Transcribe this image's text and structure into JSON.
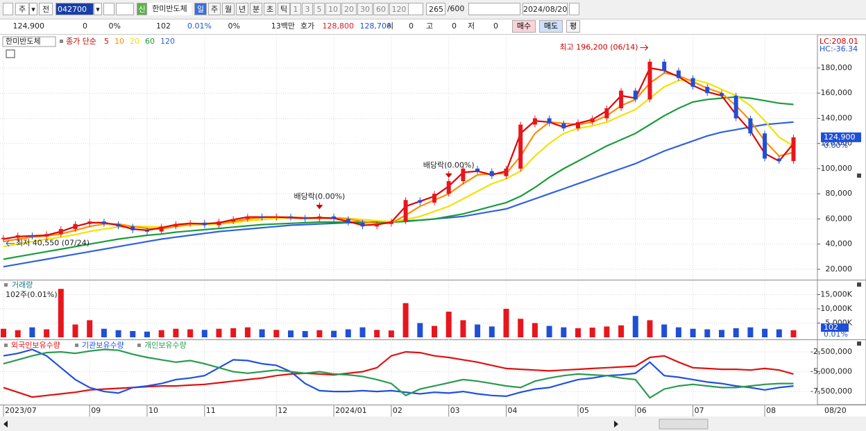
{
  "toolbar": {
    "period_type": "주",
    "compare": "전",
    "code": "042700",
    "badge": "신",
    "name": "한미반도체",
    "periods": [
      "일",
      "주",
      "월",
      "년",
      "분",
      "초",
      "틱"
    ],
    "intervals": [
      "1",
      "3",
      "5",
      "10",
      "20",
      "30",
      "60",
      "120"
    ],
    "count": "265",
    "count_max": "/600",
    "date": "2024/08/20"
  },
  "info_bar": {
    "cells": [
      "124,900",
      "0",
      "0%",
      "102",
      "0.01%",
      "0%",
      "13백만",
      "호가",
      "128,800",
      "128,700",
      "시",
      "0",
      "고",
      "0",
      "저",
      "0"
    ],
    "buttons": [
      "매수",
      "매도",
      "평"
    ]
  },
  "chart_data": [
    {
      "type": "candlestick",
      "title": "한미반도체",
      "legend_label": "종가 단순",
      "categories": [
        "2023/07",
        null,
        null,
        null,
        null,
        null,
        "09",
        null,
        null,
        null,
        "10",
        null,
        null,
        null,
        "11",
        null,
        null,
        null,
        null,
        "12",
        null,
        null,
        null,
        "2024/01",
        null,
        null,
        null,
        "02",
        null,
        null,
        null,
        "03",
        null,
        null,
        null,
        "04",
        null,
        null,
        null,
        null,
        "05",
        null,
        null,
        null,
        "06",
        null,
        null,
        null,
        "07",
        null,
        null,
        null,
        null,
        "08",
        null,
        null
      ],
      "last_date": "08/20",
      "up_color": "#e8161c",
      "down_color": "#1f4fd6",
      "close": [
        45000,
        47000,
        46000,
        48000,
        52000,
        56000,
        58000,
        56000,
        54000,
        51000,
        50000,
        54000,
        56000,
        57000,
        55000,
        58000,
        60000,
        62000,
        61000,
        62000,
        61000,
        60000,
        62000,
        60000,
        57000,
        54000,
        56000,
        58000,
        75000,
        73000,
        80000,
        90000,
        100000,
        98000,
        94000,
        100000,
        135000,
        140000,
        136000,
        132000,
        137000,
        140000,
        148000,
        162000,
        155000,
        185000,
        178000,
        172000,
        165000,
        160000,
        158000,
        140000,
        128000,
        108000,
        106000,
        124900
      ],
      "series": [
        {
          "name": "5",
          "color": "#e00000",
          "values": [
            44000,
            46000,
            46500,
            47000,
            50000,
            54000,
            57000,
            57000,
            55000,
            52000,
            51000,
            53000,
            55500,
            56500,
            56000,
            57000,
            59500,
            61500,
            61500,
            61500,
            61000,
            60500,
            61000,
            60500,
            58000,
            55000,
            55500,
            57500,
            70000,
            74000,
            78000,
            86000,
            97000,
            98000,
            95000,
            98000,
            128000,
            138000,
            137000,
            133000,
            136000,
            139000,
            146000,
            158000,
            156000,
            180000,
            178000,
            173000,
            166000,
            161000,
            158000,
            143000,
            130000,
            112000,
            106000,
            120000
          ]
        },
        {
          "name": "10",
          "color": "#ff8c00",
          "values": [
            42000,
            44000,
            45500,
            46500,
            48000,
            51000,
            54000,
            56000,
            56000,
            54000,
            52500,
            52000,
            54000,
            56000,
            56500,
            56500,
            58000,
            60000,
            61000,
            61500,
            61500,
            61000,
            60500,
            61000,
            60000,
            58000,
            56500,
            56500,
            63000,
            70000,
            75000,
            80000,
            88000,
            95000,
            96000,
            96000,
            110000,
            128000,
            137000,
            136000,
            135000,
            137000,
            142000,
            150000,
            155000,
            168000,
            176000,
            174000,
            169000,
            164000,
            160000,
            150000,
            138000,
            122000,
            110000,
            113000
          ]
        },
        {
          "name": "20",
          "color": "#f2e200",
          "values": [
            38000,
            40000,
            42000,
            44000,
            45500,
            47500,
            50000,
            52000,
            53500,
            54000,
            54000,
            53500,
            54000,
            55000,
            55500,
            56000,
            57000,
            58500,
            59500,
            60500,
            61000,
            61000,
            61000,
            61000,
            60500,
            59500,
            58500,
            58000,
            59500,
            62000,
            66000,
            70000,
            76000,
            82000,
            88000,
            92000,
            98000,
            110000,
            120000,
            128000,
            132000,
            134000,
            137000,
            142000,
            147000,
            156000,
            165000,
            170000,
            171000,
            168000,
            163000,
            158000,
            150000,
            138000,
            125000,
            118000
          ]
        },
        {
          "name": "60",
          "color": "#1a9c3a",
          "values": [
            28000,
            30000,
            32000,
            34000,
            36000,
            38000,
            40000,
            42000,
            44000,
            45500,
            47000,
            48000,
            49500,
            50500,
            51500,
            52500,
            53500,
            54500,
            55500,
            56000,
            56500,
            57000,
            57500,
            57500,
            57500,
            57500,
            57500,
            57500,
            58000,
            59000,
            60000,
            62000,
            64000,
            67000,
            70000,
            73000,
            78000,
            85000,
            93000,
            100000,
            106000,
            112000,
            118000,
            123000,
            128000,
            135000,
            142000,
            148000,
            153000,
            155000,
            156000,
            157000,
            156000,
            154000,
            152000,
            151000
          ]
        },
        {
          "name": "120",
          "color": "#3060e0",
          "values": [
            22000,
            24000,
            26000,
            28000,
            30000,
            32000,
            34000,
            36000,
            38000,
            40000,
            42000,
            44000,
            45500,
            47000,
            48500,
            50000,
            51000,
            52000,
            53000,
            54000,
            55000,
            55500,
            56000,
            56500,
            57000,
            57000,
            57500,
            58000,
            58500,
            59000,
            60000,
            61000,
            62000,
            64000,
            66000,
            68000,
            72000,
            76000,
            80000,
            84000,
            88000,
            92000,
            96000,
            100000,
            104000,
            109000,
            114000,
            118000,
            122000,
            126000,
            129000,
            131000,
            133000,
            135000,
            136000,
            137000
          ]
        }
      ],
      "ylim": [
        11700,
        203700
      ],
      "yticks": [
        {
          "value": 20000,
          "label": "20,000"
        },
        {
          "value": 40000,
          "label": "40,000"
        },
        {
          "value": 60000,
          "label": "60,000"
        },
        {
          "value": 80000,
          "label": "80,000"
        },
        {
          "value": 100000,
          "label": "100,000"
        },
        {
          "value": 120000,
          "label": "120,000"
        },
        {
          "value": 140000,
          "label": "140,000"
        },
        {
          "value": 160000,
          "label": "160,000"
        },
        {
          "value": 180000,
          "label": "180,000"
        }
      ],
      "grid": true,
      "annotations": [
        {
          "text": "최고 196,200 (06/14)",
          "value": 196200
        },
        {
          "text": "최저 40,550 (07/24)",
          "value": 40550
        },
        {
          "text": "배당락(0.00%)"
        },
        {
          "text": "배당락(0.00%)"
        }
      ],
      "scale_info": [
        "LC:208.01",
        "HC:-36.34"
      ],
      "last_price": {
        "value": 124900,
        "label": "124,900"
      },
      "change": "0.00%"
    },
    {
      "type": "bar",
      "title": "거래량",
      "subtitle": "102주(0.01%)",
      "values": [
        3000,
        2500,
        3500,
        2800,
        17000,
        4500,
        6000,
        3000,
        2500,
        2200,
        2000,
        2500,
        3000,
        2800,
        2600,
        3000,
        3200,
        3500,
        2800,
        2600,
        2400,
        2200,
        2500,
        2300,
        2800,
        3500,
        2600,
        2400,
        12000,
        5000,
        4000,
        9000,
        6000,
        4500,
        3800,
        10000,
        6500,
        5000,
        4000,
        3500,
        3200,
        3400,
        3800,
        4200,
        7500,
        6000,
        4500,
        3500,
        3000,
        2800,
        2600,
        3200,
        3500,
        3000,
        2800,
        2500
      ],
      "ylim": [
        0,
        19000
      ],
      "yticks": [
        {
          "value": 5000,
          "label": "5,000K"
        },
        {
          "value": 10000,
          "label": "10,000K"
        },
        {
          "value": 15000,
          "label": "15,000K"
        }
      ],
      "last_value": {
        "value": 0.102,
        "label": "102"
      },
      "last_change": "0.01%"
    },
    {
      "type": "line",
      "series": [
        {
          "name": "외국인보유수량",
          "color": "#e01010",
          "values": [
            -7000000,
            -7600000,
            -8200000,
            -8000000,
            -7800000,
            -7600000,
            -7300000,
            -7200000,
            -7100000,
            -7000000,
            -6900000,
            -6800000,
            -6800000,
            -6700000,
            -6600000,
            -6400000,
            -6200000,
            -6000000,
            -5800000,
            -5500000,
            -5300000,
            -5200000,
            -5300000,
            -5400000,
            -5200000,
            -5000000,
            -4500000,
            -3000000,
            -2500000,
            -2600000,
            -3000000,
            -3200000,
            -3500000,
            -3800000,
            -4200000,
            -4600000,
            -4700000,
            -4800000,
            -4900000,
            -4800000,
            -4700000,
            -4600000,
            -4500000,
            -4400000,
            -4300000,
            -3200000,
            -3000000,
            -3800000,
            -4500000,
            -4600000,
            -4700000,
            -4700000,
            -4800000,
            -4600000,
            -4800000,
            -5300000
          ]
        },
        {
          "name": "기관보유수량",
          "color": "#2050e0",
          "values": [
            -3000000,
            -2700000,
            -2200000,
            -3000000,
            -4500000,
            -6000000,
            -7000000,
            -7500000,
            -7700000,
            -7000000,
            -6800000,
            -6500000,
            -6000000,
            -5800000,
            -5500000,
            -4500000,
            -3500000,
            -3600000,
            -4000000,
            -4200000,
            -5000000,
            -6500000,
            -7400000,
            -7500000,
            -7500000,
            -7400000,
            -7500000,
            -7400000,
            -7600000,
            -7800000,
            -7600000,
            -7700000,
            -7500000,
            -7800000,
            -8000000,
            -8100000,
            -7600000,
            -7200000,
            -7000000,
            -6500000,
            -6000000,
            -5800000,
            -5500000,
            -5400000,
            -5200000,
            -3800000,
            -5500000,
            -5700000,
            -6000000,
            -6300000,
            -6500000,
            -6800000,
            -7000000,
            -7300000,
            -7000000,
            -6800000
          ]
        },
        {
          "name": "개인보유수량",
          "color": "#2a9a50",
          "values": [
            -4000000,
            -3500000,
            -3000000,
            -2600000,
            -2500000,
            -2700000,
            -2400000,
            -2200000,
            -2300000,
            -2800000,
            -3200000,
            -3500000,
            -3800000,
            -3600000,
            -4000000,
            -4500000,
            -5000000,
            -5200000,
            -5000000,
            -4800000,
            -5000000,
            -5200000,
            -5000000,
            -5300000,
            -5400000,
            -5600000,
            -6000000,
            -6500000,
            -8000000,
            -7200000,
            -6800000,
            -6400000,
            -6000000,
            -6200000,
            -6500000,
            -6800000,
            -7000000,
            -6200000,
            -5800000,
            -5500000,
            -5300000,
            -5400000,
            -5500000,
            -5800000,
            -6000000,
            -8300000,
            -7200000,
            -6800000,
            -6600000,
            -6800000,
            -7000000,
            -7000000,
            -6800000,
            -6600000,
            -6500000,
            -6500000
          ]
        }
      ],
      "ylim": [
        -9070000,
        -1190000
      ],
      "yticks": [
        {
          "value": -2500000,
          "label": "-2,500,000"
        },
        {
          "value": -5000000,
          "label": "-5,000,000"
        },
        {
          "value": -7500000,
          "label": "-7,500,000"
        }
      ]
    }
  ]
}
